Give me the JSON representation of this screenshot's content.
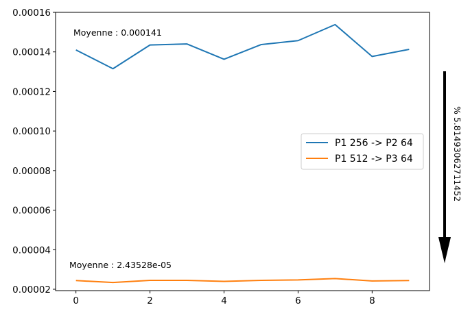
{
  "chart_data": {
    "type": "line",
    "x": [
      0,
      1,
      2,
      3,
      4,
      5,
      6,
      7,
      8,
      9
    ],
    "series": [
      {
        "name": "P1 256 -> P2 64",
        "color": "#1f77b4",
        "values": [
          0.000141,
          0.0001315,
          0.0001435,
          0.000144,
          0.0001363,
          0.0001437,
          0.0001457,
          0.0001538,
          0.0001377,
          0.0001413
        ]
      },
      {
        "name": "P1 512 -> P3 64",
        "color": "#ff7f0e",
        "values": [
          2.44e-05,
          2.34e-05,
          2.45e-05,
          2.45e-05,
          2.4e-05,
          2.45e-05,
          2.47e-05,
          2.54e-05,
          2.42e-05,
          2.44e-05
        ]
      }
    ],
    "xlim": [
      -0.55,
      9.55
    ],
    "ylim": [
      1.93e-05,
      0.00016
    ],
    "xticks": [
      0,
      2,
      4,
      6,
      8
    ],
    "xtick_labels": [
      "0",
      "2",
      "4",
      "6",
      "8"
    ],
    "yticks": [
      2e-05,
      4e-05,
      6e-05,
      8e-05,
      0.0001,
      0.00012,
      0.00014,
      0.00016
    ],
    "ytick_labels": [
      "0.00002",
      "0.00004",
      "0.00006",
      "0.00008",
      "0.00010",
      "0.00012",
      "0.00014",
      "0.00016"
    ],
    "annotations": [
      "Moyenne : 0.000141",
      "Moyenne : 2.43528e-05"
    ],
    "side_label": "% 5.81493062711452",
    "legend": "center-right",
    "grid": false
  }
}
